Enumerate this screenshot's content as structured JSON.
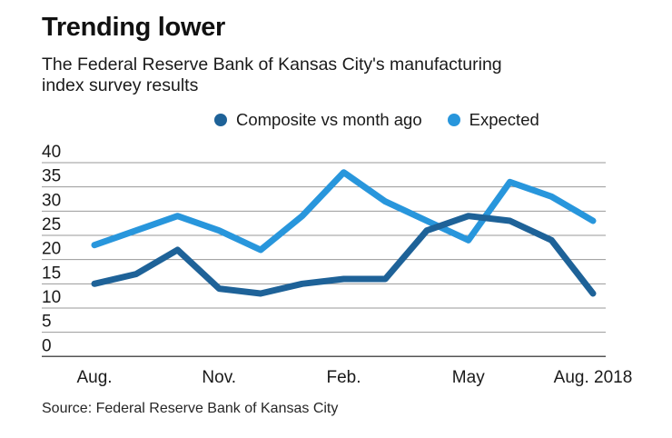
{
  "title": "Trending lower",
  "subtitle_lines": [
    "The Federal Reserve Bank of Kansas City's manufacturing",
    "index survey results"
  ],
  "legend": [
    {
      "label": "Composite vs month ago",
      "color": "#1E6298"
    },
    {
      "label": "Expected",
      "color": "#2896DC"
    }
  ],
  "source": "Source: Federal Reserve Bank of Kansas City",
  "colors": {
    "composite_line": "#1E6298",
    "expected_line": "#2896DC",
    "gridline": "#999999",
    "zero_axis": "#555555",
    "text": "#1a1a1a"
  },
  "chart_data": {
    "type": "line",
    "n_points": 13,
    "x_tick_labels": [
      "Aug.",
      "Nov.",
      "Feb.",
      "May",
      "Aug. 2018"
    ],
    "x_tick_indices": [
      0,
      3,
      6,
      9,
      12
    ],
    "yticks": [
      0,
      5,
      10,
      15,
      20,
      25,
      30,
      35,
      40
    ],
    "ylim": [
      0,
      40
    ],
    "grid": "horizontal",
    "legend_position": "top",
    "series": [
      {
        "name": "Composite vs month ago",
        "color": "#1E6298",
        "values": [
          15,
          17,
          22,
          14,
          13,
          15,
          16,
          16,
          26,
          29,
          28,
          24,
          13
        ]
      },
      {
        "name": "Expected",
        "color": "#2896DC",
        "values": [
          23,
          26,
          29,
          26,
          22,
          29,
          38,
          32,
          28,
          24,
          36,
          33,
          28
        ]
      }
    ]
  }
}
